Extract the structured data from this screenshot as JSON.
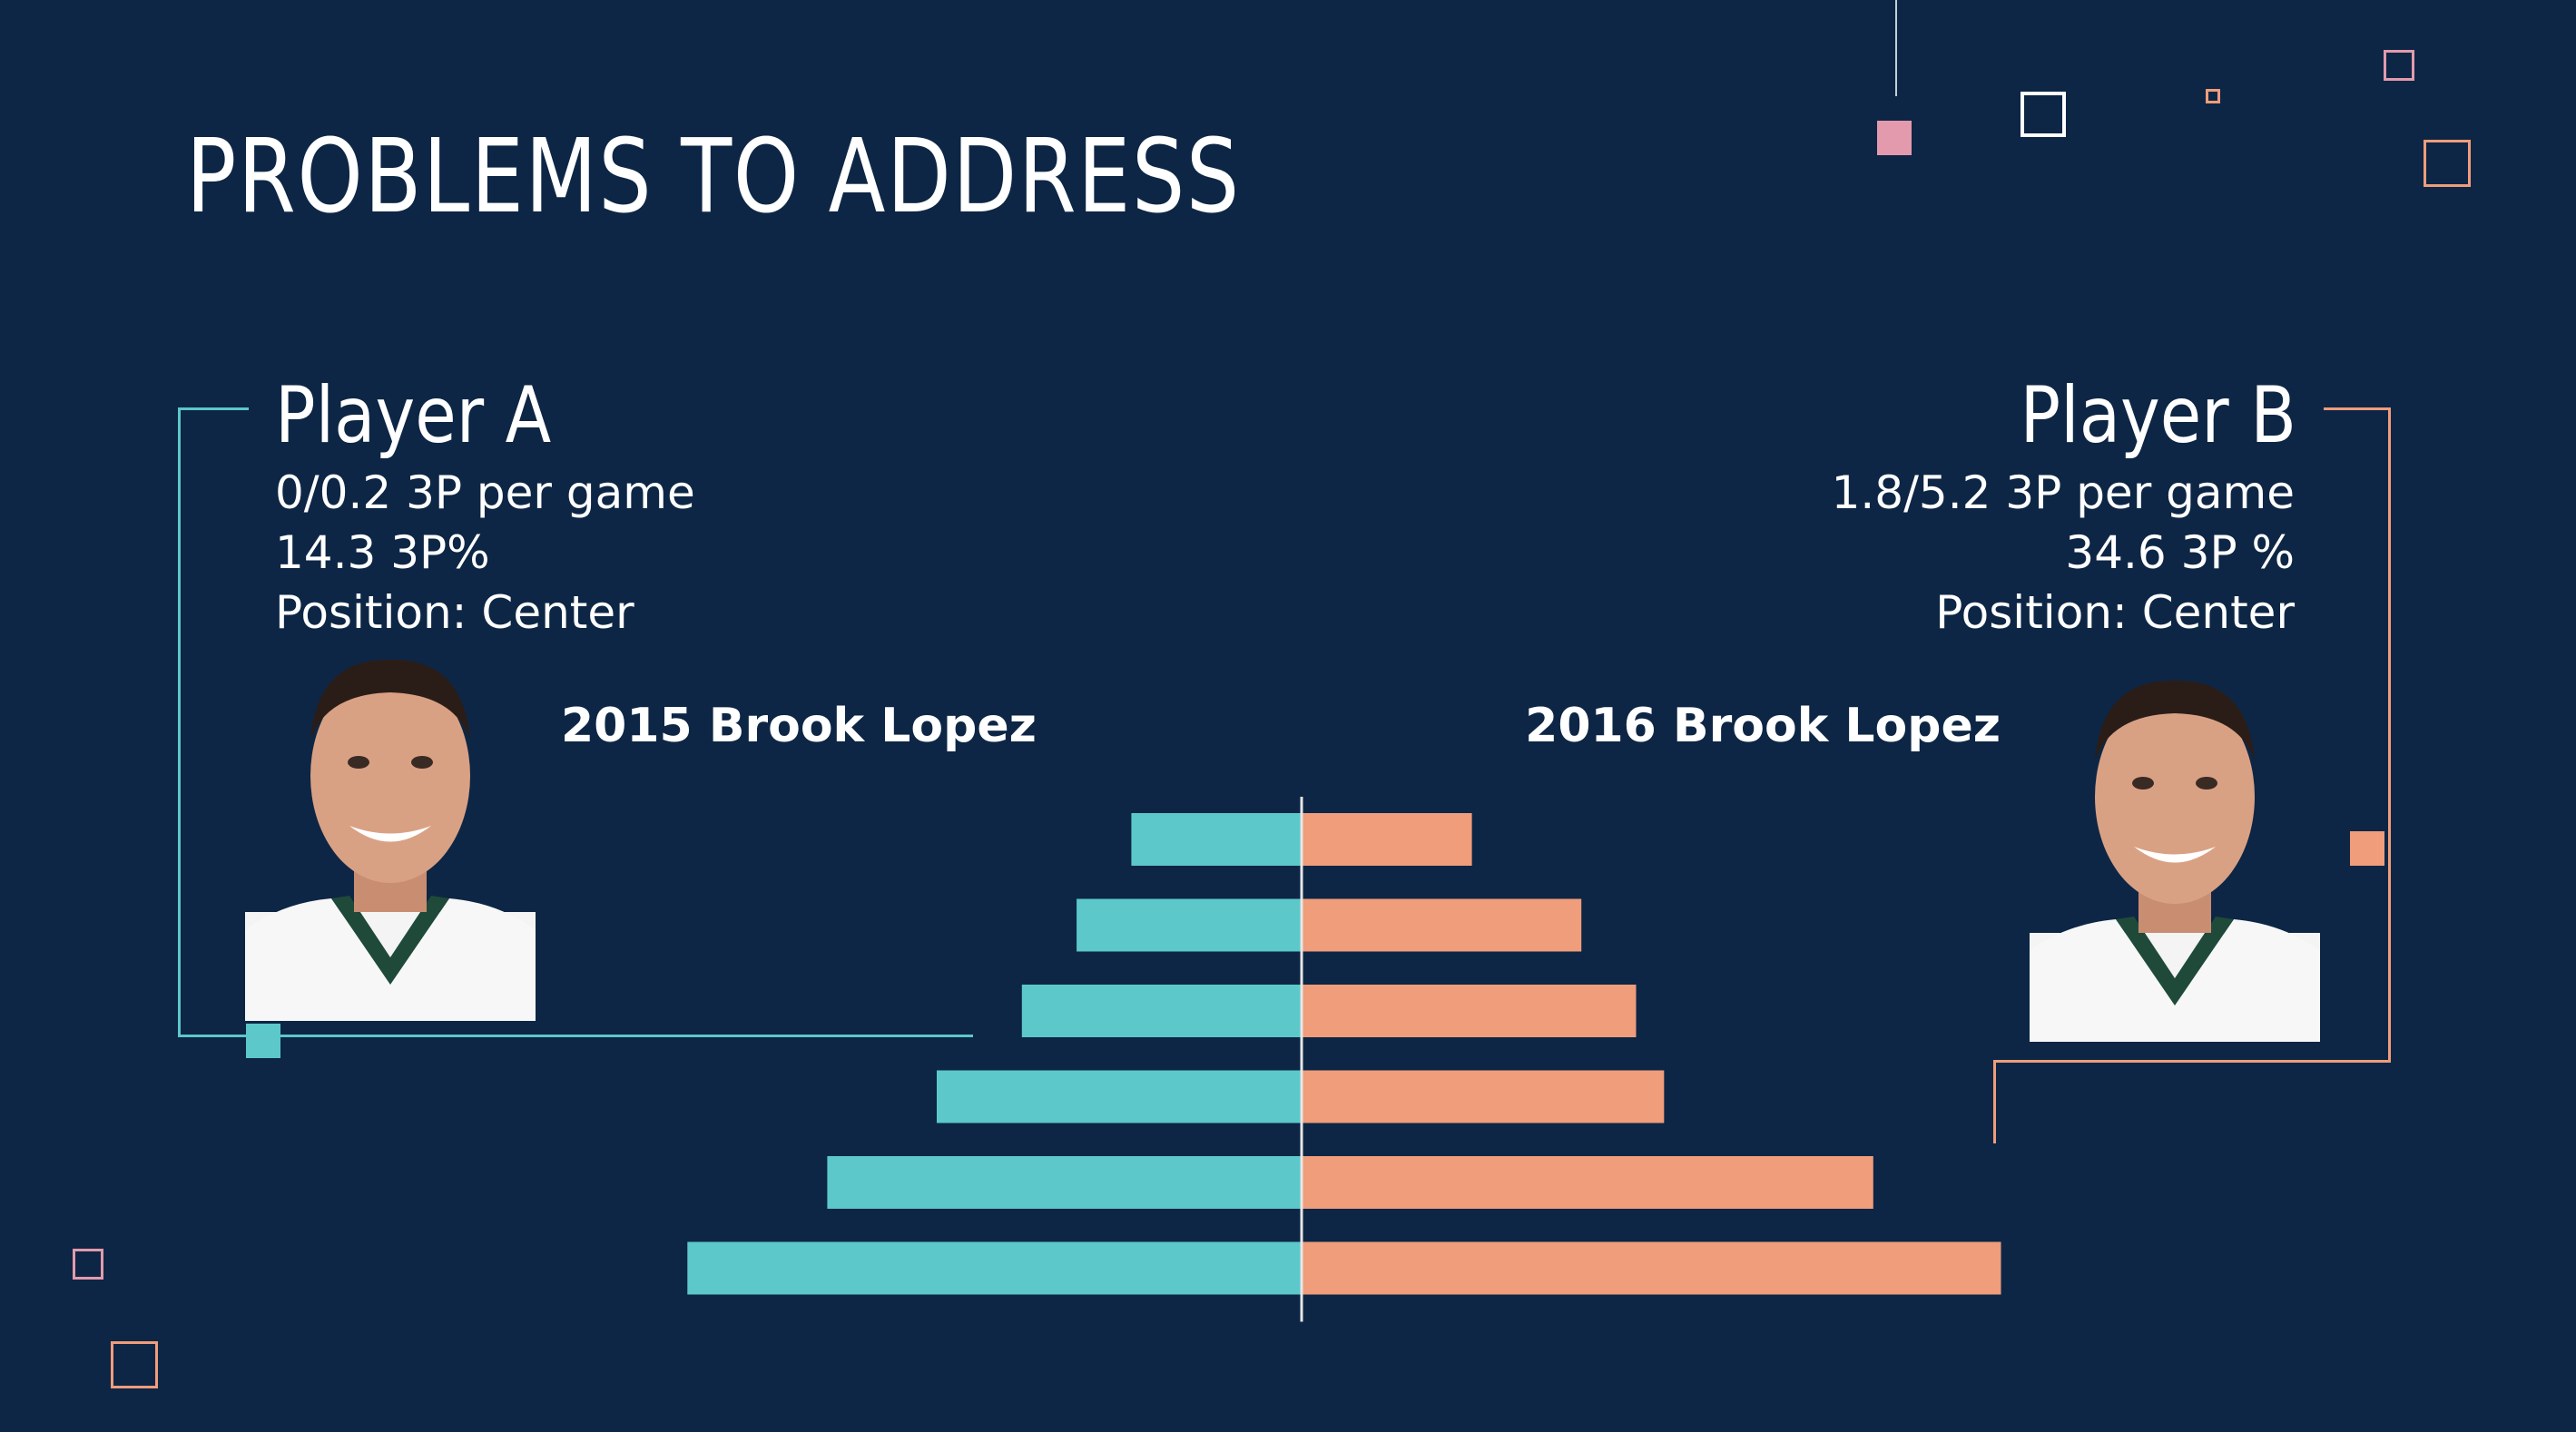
{
  "slide": {
    "title": "PROBLEMS TO ADDRESS"
  },
  "player_a": {
    "name": "Player A",
    "stats": [
      "0/0.2 3P per game",
      "14.3 3P%",
      "Position: Center"
    ],
    "season_label": "2015 Brook Lopez"
  },
  "player_b": {
    "name": "Player B",
    "stats": [
      "1.8/5.2 3P per game",
      "34.6 3P %",
      "Position: Center"
    ],
    "season_label": "2016 Brook Lopez"
  },
  "colors": {
    "background": "#0d2645",
    "teal": "#5cc8c9",
    "salmon": "#ef9d7b",
    "pink": "#e39aad"
  },
  "chart_data": {
    "type": "bar",
    "orientation": "horizontal-butterfly",
    "series": [
      {
        "name": "2015 Brook Lopez",
        "values": [
          1.4,
          1.85,
          2.3,
          3.0,
          3.9,
          5.05
        ],
        "color": "#5cc8c9",
        "side": "left"
      },
      {
        "name": "2016 Brook Lopez",
        "values": [
          1.4,
          2.3,
          2.75,
          2.98,
          4.7,
          5.75
        ],
        "color": "#ef9d7b",
        "side": "right"
      }
    ],
    "xlim": [
      0,
      6
    ],
    "grid": false,
    "axis_labels_shown": false
  }
}
